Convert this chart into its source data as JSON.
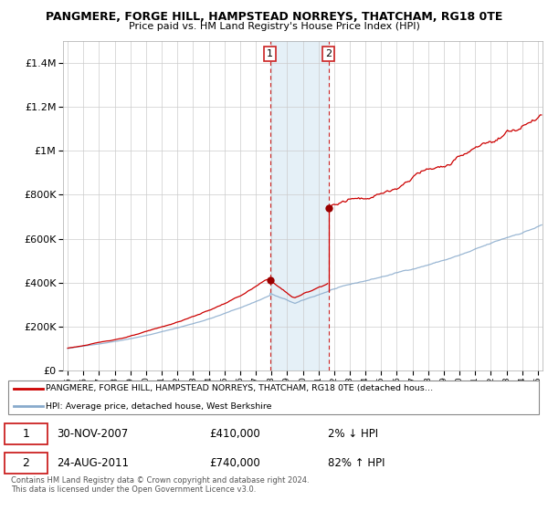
{
  "title": "PANGMERE, FORGE HILL, HAMPSTEAD NORREYS, THATCHAM, RG18 0TE",
  "subtitle": "Price paid vs. HM Land Registry's House Price Index (HPI)",
  "legend_line1": "PANGMERE, FORGE HILL, HAMPSTEAD NORREYS, THATCHAM, RG18 0TE (detached house",
  "legend_line2": "HPI: Average price, detached house, West Berkshire",
  "footnote": "Contains HM Land Registry data © Crown copyright and database right 2024.\nThis data is licensed under the Open Government Licence v3.0.",
  "point1_label": "1",
  "point1_date": "30-NOV-2007",
  "point1_price": "£410,000",
  "point1_hpi": "2% ↓ HPI",
  "point2_label": "2",
  "point2_date": "24-AUG-2011",
  "point2_price": "£740,000",
  "point2_hpi": "82% ↑ HPI",
  "point1_year": 2007.917,
  "point2_year": 2011.646,
  "point1_value": 410000,
  "point2_value": 740000,
  "ylim": [
    0,
    1500000
  ],
  "xlim_left": 1994.7,
  "xlim_right": 2025.3,
  "red_line_color": "#cc0000",
  "blue_line_color": "#88aacc",
  "shade_color": "#daeaf5",
  "shade_alpha": 0.7,
  "grid_color": "#cccccc",
  "marker_color": "#990000",
  "vline_color": "#cc2222",
  "background_color": "#ffffff"
}
